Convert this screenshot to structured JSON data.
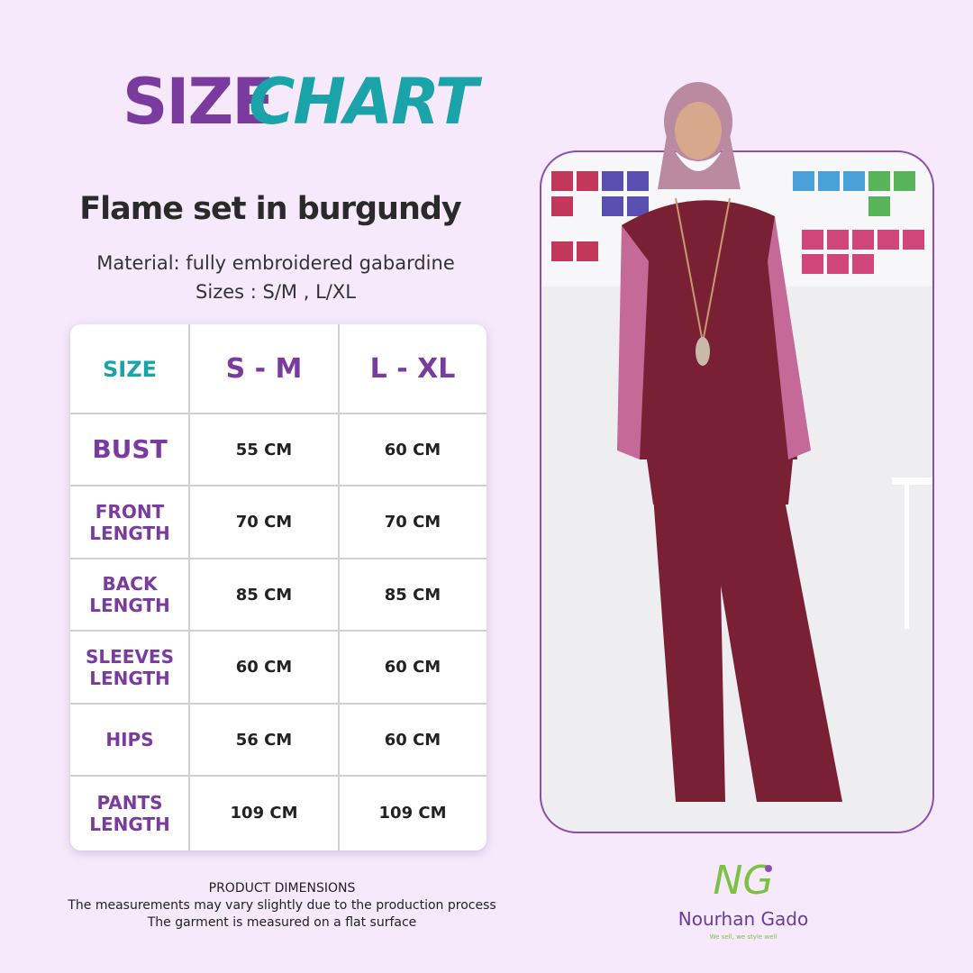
{
  "header": {
    "title_part1": "SIZE",
    "title_part2": "CHART",
    "product": "Flame set in burgundy",
    "material": "Material: fully embroidered gabardine",
    "sizes": "Sizes : S/M , L/XL"
  },
  "table": {
    "columns": [
      "SIZE",
      "S - M",
      "L - XL"
    ],
    "rows": [
      [
        "BUST",
        "55 CM",
        "60 CM"
      ],
      [
        "FRONT LENGTH",
        "70 CM",
        "70 CM"
      ],
      [
        "BACK LENGTH",
        "85 CM",
        "85 CM"
      ],
      [
        "SLEEVES LENGTH",
        "60 CM",
        "60 CM"
      ],
      [
        "HIPS",
        "56 CM",
        "60 CM"
      ],
      [
        "PANTS LENGTH",
        "109 CM",
        "109 CM"
      ]
    ]
  },
  "footer": {
    "heading": "PRODUCT DIMENSIONS",
    "line1": "The measurements may vary slightly due to the production process",
    "line2": "The garment is measured on a flat surface"
  },
  "brand": {
    "monogram": "NG",
    "name": "Nourhan Gado",
    "tagline": "We sell, we style well"
  }
}
